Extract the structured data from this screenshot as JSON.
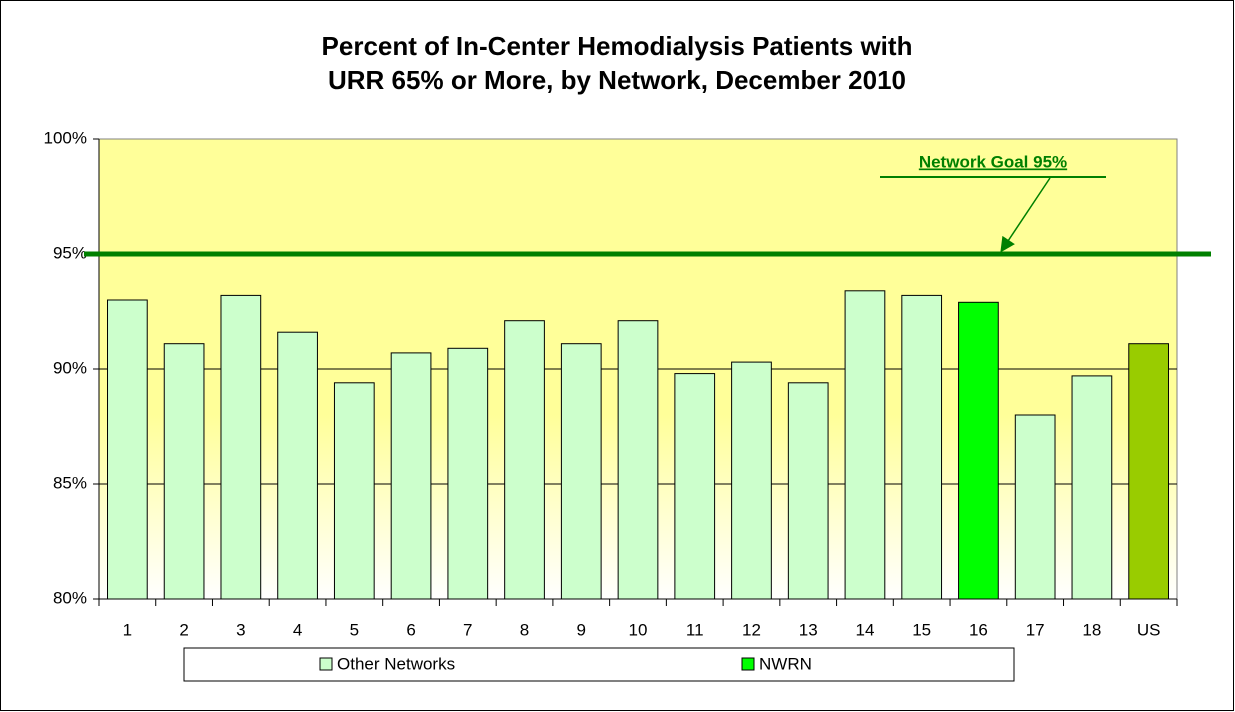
{
  "chart_data": {
    "type": "bar",
    "title": [
      "Percent of In-Center Hemodialysis Patients with",
      "URR 65% or More, by Network, December 2010"
    ],
    "categories": [
      "1",
      "2",
      "3",
      "4",
      "5",
      "6",
      "7",
      "8",
      "9",
      "10",
      "11",
      "12",
      "13",
      "14",
      "15",
      "16",
      "17",
      "18",
      "US"
    ],
    "values": [
      93.0,
      91.1,
      93.2,
      91.6,
      89.4,
      90.7,
      90.9,
      92.1,
      91.1,
      92.1,
      89.8,
      90.3,
      89.4,
      93.4,
      93.2,
      92.9,
      88.0,
      89.7,
      91.1
    ],
    "colors": [
      "#ccffcc",
      "#ccffcc",
      "#ccffcc",
      "#ccffcc",
      "#ccffcc",
      "#ccffcc",
      "#ccffcc",
      "#ccffcc",
      "#ccffcc",
      "#ccffcc",
      "#ccffcc",
      "#ccffcc",
      "#ccffcc",
      "#ccffcc",
      "#ccffcc",
      "#00ff00",
      "#ccffcc",
      "#ccffcc",
      "#99cc00"
    ],
    "legend": [
      {
        "name": "Other Networks",
        "color": "#ccffcc"
      },
      {
        "name": "NWRN",
        "color": "#00ff00"
      }
    ],
    "goal": {
      "value": 95,
      "label": "Network Goal 95%",
      "color": "#008000"
    },
    "ylim": [
      80,
      100
    ],
    "yticks": [
      {
        "value": 80,
        "label": "80%"
      },
      {
        "value": 85,
        "label": "85%"
      },
      {
        "value": 90,
        "label": "90%"
      },
      {
        "value": 95,
        "label": "95%"
      },
      {
        "value": 100,
        "label": "100%"
      }
    ],
    "grid": true
  }
}
